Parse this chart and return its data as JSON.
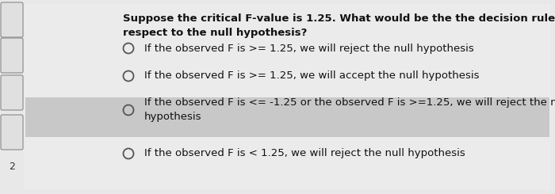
{
  "question_line1": "Suppose the critical F-value is 1.25. What would be the the decision rule with",
  "question_line2": "respect to the null hypothesis?",
  "options": [
    "If the observed F is >= 1.25, we will reject the null hypothesis",
    "If the observed F is >= 1.25, we will accept the null hypothesis",
    "If the observed F is <= -1.25 or the observed F is >=1.25, we will reject the null\nhypothesis",
    "If the observed F is < 1.25, we will reject the null hypothesis"
  ],
  "highlighted_option": 2,
  "bg_color": "#e8e8e8",
  "content_bg": "#f0f0f0",
  "highlight_color": "#c8c8c8",
  "tab_border_color": "#888888",
  "number_label": "2",
  "font_size_question": 9.5,
  "font_size_options": 9.5,
  "circle_color": "#555555",
  "text_color": "#111111"
}
